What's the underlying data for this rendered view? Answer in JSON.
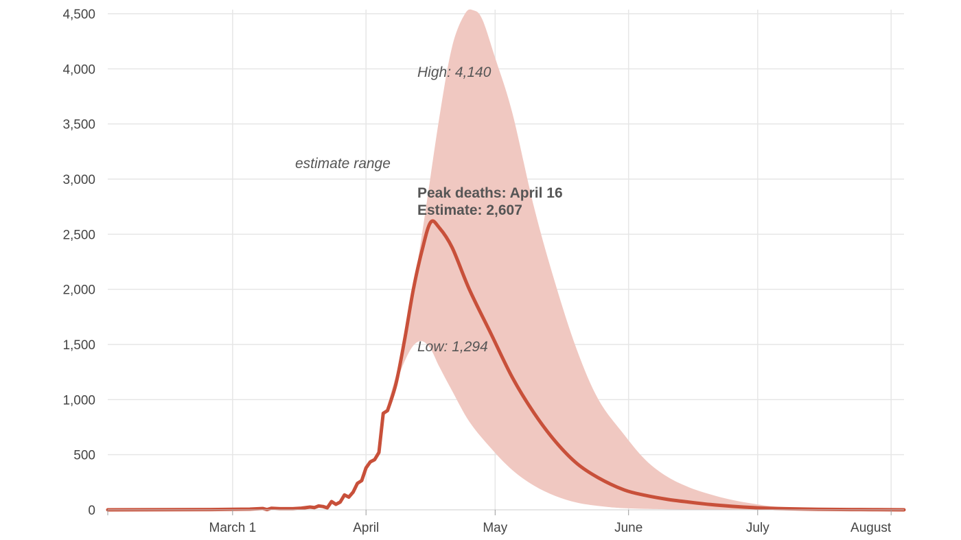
{
  "chart_data": {
    "type": "line",
    "title": "",
    "xlabel": "",
    "ylabel": "",
    "ylim": [
      0,
      4500
    ],
    "yticks": [
      0,
      500,
      1000,
      1500,
      2000,
      2500,
      3000,
      3500,
      4000,
      4500
    ],
    "ytick_labels": [
      "0",
      "500",
      "1,000",
      "1,500",
      "2,000",
      "2,500",
      "3,000",
      "3,500",
      "4,000",
      "4,500"
    ],
    "xlim": [
      "2020-02-01",
      "2020-08-04"
    ],
    "xticks": [
      "2020-03-01",
      "2020-04-01",
      "2020-05-01",
      "2020-06-01",
      "2020-07-01",
      "2020-08-01"
    ],
    "xtick_labels": [
      "March 1",
      "April",
      "May",
      "June",
      "July",
      "August"
    ],
    "grid": true,
    "colors": {
      "line": "#c8503a",
      "band": "#f0c8c1",
      "band_label": "#e39a8d",
      "text": "#555555"
    },
    "series": [
      {
        "role": "estimate",
        "points": [
          [
            "2020-02-01",
            0
          ],
          [
            "2020-02-25",
            2
          ],
          [
            "2020-03-01",
            5
          ],
          [
            "2020-03-05",
            6
          ],
          [
            "2020-03-08",
            12
          ],
          [
            "2020-03-09",
            2
          ],
          [
            "2020-03-10",
            14
          ],
          [
            "2020-03-12",
            10
          ],
          [
            "2020-03-15",
            10
          ],
          [
            "2020-03-17",
            15
          ],
          [
            "2020-03-19",
            25
          ],
          [
            "2020-03-20",
            20
          ],
          [
            "2020-03-21",
            35
          ],
          [
            "2020-03-22",
            30
          ],
          [
            "2020-03-23",
            18
          ],
          [
            "2020-03-24",
            75
          ],
          [
            "2020-03-25",
            50
          ],
          [
            "2020-03-26",
            70
          ],
          [
            "2020-03-27",
            135
          ],
          [
            "2020-03-28",
            115
          ],
          [
            "2020-03-29",
            160
          ],
          [
            "2020-03-30",
            240
          ],
          [
            "2020-03-31",
            265
          ],
          [
            "2020-04-01",
            380
          ],
          [
            "2020-04-02",
            435
          ],
          [
            "2020-04-03",
            455
          ],
          [
            "2020-04-04",
            520
          ],
          [
            "2020-04-05",
            875
          ],
          [
            "2020-04-06",
            900
          ],
          [
            "2020-04-08",
            1150
          ],
          [
            "2020-04-10",
            1550
          ],
          [
            "2020-04-12",
            2000
          ],
          [
            "2020-04-14",
            2350
          ],
          [
            "2020-04-16",
            2607
          ],
          [
            "2020-04-18",
            2560
          ],
          [
            "2020-04-21",
            2380
          ],
          [
            "2020-04-25",
            2000
          ],
          [
            "2020-04-30",
            1600
          ],
          [
            "2020-05-05",
            1200
          ],
          [
            "2020-05-10",
            880
          ],
          [
            "2020-05-15",
            620
          ],
          [
            "2020-05-20",
            420
          ],
          [
            "2020-05-25",
            290
          ],
          [
            "2020-05-31",
            180
          ],
          [
            "2020-06-05",
            130
          ],
          [
            "2020-06-10",
            95
          ],
          [
            "2020-06-15",
            70
          ],
          [
            "2020-06-20",
            48
          ],
          [
            "2020-06-25",
            32
          ],
          [
            "2020-06-30",
            20
          ],
          [
            "2020-07-05",
            12
          ],
          [
            "2020-07-15",
            5
          ],
          [
            "2020-07-25",
            2
          ],
          [
            "2020-08-04",
            0
          ]
        ]
      },
      {
        "role": "range_upper",
        "points": [
          [
            "2020-04-05",
            850
          ],
          [
            "2020-04-06",
            950
          ],
          [
            "2020-04-10",
            1550
          ],
          [
            "2020-04-14",
            2500
          ],
          [
            "2020-04-18",
            3550
          ],
          [
            "2020-04-21",
            4200
          ],
          [
            "2020-04-24",
            4500
          ],
          [
            "2020-04-26",
            4530
          ],
          [
            "2020-04-28",
            4450
          ],
          [
            "2020-05-01",
            4100
          ],
          [
            "2020-05-05",
            3600
          ],
          [
            "2020-05-10",
            2750
          ],
          [
            "2020-05-15",
            2050
          ],
          [
            "2020-05-20",
            1450
          ],
          [
            "2020-05-25",
            1000
          ],
          [
            "2020-05-31",
            680
          ],
          [
            "2020-06-05",
            450
          ],
          [
            "2020-06-10",
            300
          ],
          [
            "2020-06-15",
            205
          ],
          [
            "2020-06-20",
            140
          ],
          [
            "2020-06-25",
            90
          ],
          [
            "2020-06-30",
            55
          ],
          [
            "2020-07-05",
            30
          ],
          [
            "2020-07-15",
            10
          ],
          [
            "2020-07-25",
            3
          ],
          [
            "2020-08-04",
            0
          ]
        ]
      },
      {
        "role": "range_lower",
        "points": [
          [
            "2020-04-05",
            830
          ],
          [
            "2020-04-06",
            950
          ],
          [
            "2020-04-08",
            1150
          ],
          [
            "2020-04-10",
            1350
          ],
          [
            "2020-04-12",
            1490
          ],
          [
            "2020-04-14",
            1530
          ],
          [
            "2020-04-16",
            1460
          ],
          [
            "2020-04-18",
            1300
          ],
          [
            "2020-04-21",
            1080
          ],
          [
            "2020-04-25",
            800
          ],
          [
            "2020-04-30",
            560
          ],
          [
            "2020-05-05",
            360
          ],
          [
            "2020-05-10",
            220
          ],
          [
            "2020-05-15",
            125
          ],
          [
            "2020-05-20",
            65
          ],
          [
            "2020-05-25",
            35
          ],
          [
            "2020-05-31",
            15
          ],
          [
            "2020-06-10",
            5
          ],
          [
            "2020-06-20",
            2
          ],
          [
            "2020-07-01",
            0
          ],
          [
            "2020-08-04",
            0
          ]
        ]
      }
    ],
    "annotations": {
      "range_label": "estimate range",
      "high_label": "High: 4,140",
      "low_label": "Low: 1,294",
      "peak_line1": "Peak deaths: April 16",
      "peak_line2": "Estimate: 2,607"
    }
  }
}
